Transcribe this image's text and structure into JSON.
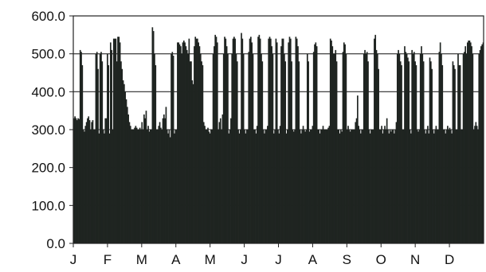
{
  "chart_data": {
    "type": "bar",
    "title": "",
    "xlabel": "",
    "ylabel": "",
    "ylim": [
      0,
      600
    ],
    "y_ticks": [
      "0.0",
      "100.0",
      "200.0",
      "300.0",
      "400.0",
      "500.0",
      "600.0"
    ],
    "grid": "horizontal",
    "legend": "none",
    "bar_color": "#1f2421",
    "x_ticks": [
      "J",
      "F",
      "M",
      "A",
      "M",
      "J",
      "J",
      "A",
      "S",
      "O",
      "N",
      "D"
    ],
    "series": [
      {
        "values": [
          330,
          335,
          330,
          325,
          330,
          328,
          510,
          505,
          470,
          300,
          295,
          310,
          320,
          330,
          335,
          325,
          300,
          320,
          325,
          300,
          300,
          500,
          505,
          460,
          290,
          500,
          505,
          480,
          300,
          290,
          330,
          330,
          500,
          470,
          290,
          530,
          510,
          300,
          540,
          540,
          540,
          480,
          545,
          545,
          530,
          480,
          460,
          430,
          420,
          400,
          380,
          360,
          340,
          320,
          310,
          300,
          300,
          300,
          305,
          310,
          305,
          300,
          300,
          305,
          300,
          320,
          300,
          340,
          330,
          350,
          300,
          310,
          295,
          300,
          300,
          570,
          560,
          500,
          470,
          300,
          300,
          310,
          320,
          305,
          300,
          330,
          340,
          330,
          360,
          300,
          290,
          300,
          280,
          500,
          505,
          495,
          290,
          300,
          300,
          530,
          530,
          525,
          520,
          500,
          530,
          535,
          530,
          520,
          510,
          500,
          540,
          480,
          480,
          430,
          420,
          520,
          545,
          540,
          540,
          530,
          520,
          500,
          480,
          470,
          320,
          310,
          300,
          300,
          305,
          295,
          290,
          300,
          300,
          500,
          520,
          550,
          545,
          530,
          300,
          320,
          330,
          300,
          340,
          500,
          545,
          540,
          520,
          500,
          290,
          300,
          330,
          500,
          540,
          545,
          540,
          500,
          480,
          300,
          290,
          300,
          555,
          540,
          500,
          300,
          290,
          300,
          300,
          505,
          540,
          545,
          530,
          500,
          300,
          300,
          290,
          310,
          545,
          550,
          540,
          500,
          480,
          300,
          290,
          300,
          300,
          310,
          540,
          545,
          540,
          520,
          500,
          290,
          300,
          540,
          530,
          300,
          290,
          310,
          520,
          540,
          540,
          500,
          480,
          290,
          300,
          530,
          545,
          540,
          480,
          300,
          295,
          300,
          545,
          540,
          520,
          480,
          300,
          290,
          300,
          310,
          300,
          295,
          300,
          500,
          480,
          295,
          300,
          300,
          310,
          505,
          525,
          530,
          520,
          300,
          300,
          290,
          300,
          300,
          310,
          300,
          300,
          300,
          300,
          305,
          310,
          540,
          535,
          520,
          500,
          500,
          510,
          480,
          300,
          300,
          290,
          300,
          295,
          505,
          530,
          525,
          500,
          300,
          310,
          300,
          295,
          300,
          300,
          300,
          300,
          320,
          330,
          390,
          310,
          300,
          290,
          300,
          300,
          500,
          510,
          500,
          505,
          480,
          300,
          290,
          300,
          300,
          300,
          540,
          550,
          510,
          500,
          460,
          300,
          300,
          310,
          290,
          300,
          310,
          300,
          330,
          300,
          290,
          300,
          295,
          300,
          300,
          290,
          300,
          320,
          500,
          510,
          500,
          480,
          470,
          300,
          300,
          520,
          505,
          500,
          490,
          480,
          300,
          290,
          510,
          500,
          505,
          480,
          470,
          300,
          295,
          300,
          500,
          520,
          500,
          480,
          300,
          290,
          300,
          310,
          290,
          490,
          480,
          460,
          300,
          290,
          300,
          310,
          300,
          300,
          505,
          530,
          500,
          470,
          300,
          300,
          290,
          300,
          310,
          300,
          305,
          300,
          290,
          480,
          470,
          460,
          300,
          300,
          500,
          470,
          470,
          300,
          300,
          500,
          505,
          520,
          500,
          530,
          535,
          535,
          530,
          520,
          500,
          300,
          310,
          320,
          310,
          300,
          500,
          510,
          520,
          525,
          530
        ]
      }
    ]
  }
}
